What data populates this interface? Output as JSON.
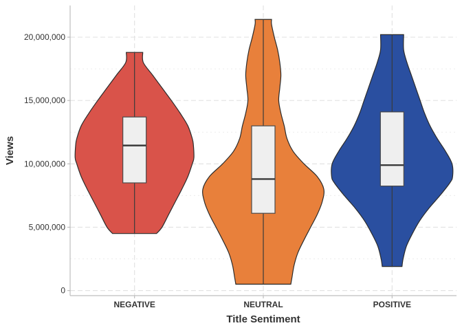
{
  "chart_data": {
    "type": "violin",
    "xlabel": "Title Sentiment",
    "ylabel": "Views",
    "ylim": [
      -400000,
      22500000
    ],
    "yticks": [
      0,
      5000000,
      10000000,
      15000000,
      20000000
    ],
    "ytick_labels": [
      "0",
      "5,000,000",
      "10,000,000",
      "15,000,000",
      "20,000,000"
    ],
    "grid": true,
    "categories": [
      "NEGATIVE",
      "NEUTRAL",
      "POSITIVE"
    ],
    "series": [
      {
        "category": "NEGATIVE",
        "color": "#d9534a",
        "min": 4500000,
        "q1": 8500000,
        "median": 11450000,
        "q3": 13700000,
        "max": 18800000,
        "density_y": [
          4500000,
          5000000,
          6000000,
          7000000,
          8000000,
          9000000,
          10000000,
          10500000,
          11500000,
          12000000,
          13000000,
          14000000,
          15000000,
          16000000,
          17000000,
          18000000,
          18800000
        ],
        "density_w": [
          0.4,
          0.5,
          0.62,
          0.74,
          0.86,
          0.97,
          1.05,
          1.08,
          1.07,
          1.05,
          0.97,
          0.83,
          0.67,
          0.5,
          0.33,
          0.16,
          0.15
        ]
      },
      {
        "category": "NEUTRAL",
        "color": "#e8803b",
        "min": 500000,
        "q1": 6100000,
        "median": 8800000,
        "q3": 13000000,
        "max": 21400000,
        "density_y": [
          500000,
          1000000,
          2000000,
          3000000,
          4000000,
          5000000,
          6000000,
          7000000,
          8000000,
          9000000,
          10000000,
          11000000,
          12000000,
          13000000,
          14000000,
          15000000,
          16000000,
          17000000,
          18000000,
          19000000,
          20000000,
          21000000,
          21400000
        ],
        "density_w": [
          0.5,
          0.52,
          0.56,
          0.63,
          0.74,
          0.86,
          0.98,
          1.07,
          1.1,
          0.98,
          0.74,
          0.54,
          0.43,
          0.38,
          0.32,
          0.28,
          0.3,
          0.32,
          0.3,
          0.26,
          0.2,
          0.15,
          0.15
        ]
      },
      {
        "category": "POSITIVE",
        "color": "#2a4fa0",
        "min": 1900000,
        "q1": 8250000,
        "median": 9900000,
        "q3": 14100000,
        "max": 20200000,
        "density_y": [
          1900000,
          2500000,
          3500000,
          4500000,
          5500000,
          6500000,
          7500000,
          8500000,
          9000000,
          10000000,
          11000000,
          12000000,
          13000000,
          14000000,
          15000000,
          16000000,
          17000000,
          18000000,
          19000000,
          20200000
        ],
        "density_w": [
          0.18,
          0.2,
          0.26,
          0.37,
          0.5,
          0.67,
          0.87,
          1.05,
          1.1,
          1.09,
          0.97,
          0.82,
          0.69,
          0.59,
          0.51,
          0.43,
          0.35,
          0.27,
          0.21,
          0.21
        ]
      }
    ]
  }
}
